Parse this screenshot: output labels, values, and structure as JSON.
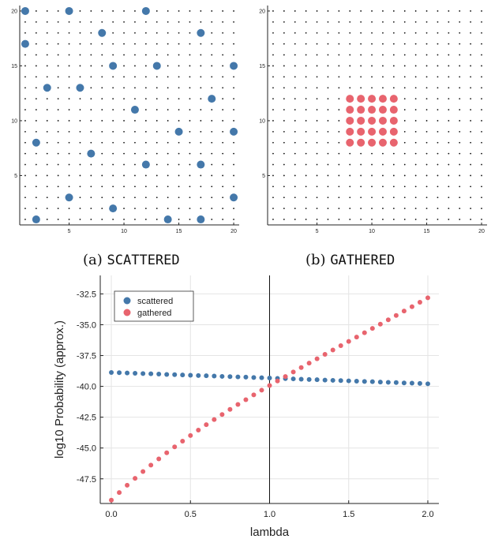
{
  "captions": {
    "a_label": "(a)",
    "a_name": "SCATTERED",
    "b_label": "(b)",
    "b_name": "GATHERED"
  },
  "colors": {
    "scattered": "#4478aa",
    "gathered": "#e8646e",
    "grid_dot": "#111111",
    "axis": "#222222"
  },
  "chart_data": [
    {
      "id": "a",
      "type": "scatter",
      "title": "",
      "xlabel": "",
      "ylabel": "",
      "xlim": [
        0.5,
        20.5
      ],
      "ylim": [
        0.5,
        20.5
      ],
      "xticks": [
        5,
        10,
        15,
        20
      ],
      "yticks": [
        5,
        10,
        15,
        20
      ],
      "background_grid": "dot at every integer lattice point",
      "points": [
        [
          1,
          20
        ],
        [
          5,
          20
        ],
        [
          12,
          20
        ],
        [
          8,
          18
        ],
        [
          17,
          18
        ],
        [
          1,
          17
        ],
        [
          9,
          15
        ],
        [
          13,
          15
        ],
        [
          20,
          15
        ],
        [
          3,
          13
        ],
        [
          6,
          13
        ],
        [
          18,
          12
        ],
        [
          11,
          11
        ],
        [
          15,
          9
        ],
        [
          20,
          9
        ],
        [
          2,
          8
        ],
        [
          7,
          7
        ],
        [
          12,
          6
        ],
        [
          17,
          6
        ],
        [
          5,
          3
        ],
        [
          20,
          3
        ],
        [
          9,
          2
        ],
        [
          2,
          1
        ],
        [
          14,
          1
        ],
        [
          17,
          1
        ]
      ]
    },
    {
      "id": "b",
      "type": "scatter",
      "title": "",
      "xlabel": "",
      "ylabel": "",
      "xlim": [
        0.5,
        20.5
      ],
      "ylim": [
        0.5,
        20.5
      ],
      "xticks": [
        5,
        10,
        15,
        20
      ],
      "yticks": [
        5,
        10,
        15,
        20
      ],
      "background_grid": "dot at every integer lattice point",
      "points_block": {
        "x": [
          8,
          12
        ],
        "y": [
          8,
          12
        ]
      }
    },
    {
      "id": "c",
      "type": "scatter",
      "title": "",
      "xlabel": "lambda",
      "ylabel": "log10 Probability (approx.)",
      "xlim": [
        -0.07,
        2.07
      ],
      "ylim": [
        -49.5,
        -31.0
      ],
      "xticks": [
        0.0,
        0.5,
        1.0,
        1.5,
        2.0
      ],
      "xtick_labels": [
        "0.0",
        "0.5",
        "1.0",
        "1.5",
        "2.0"
      ],
      "yticks": [
        -47.5,
        -45.0,
        -42.5,
        -40.0,
        -37.5,
        -35.0,
        -32.5
      ],
      "ytick_labels": [
        "-47.5",
        "-45.0",
        "-42.5",
        "-40.0",
        "-37.5",
        "-35.0",
        "-32.5"
      ],
      "grid": true,
      "legend": "top-left",
      "vline": 1.0,
      "x": [
        0.0,
        0.05,
        0.1,
        0.15,
        0.2,
        0.25,
        0.3,
        0.35,
        0.4,
        0.45,
        0.5,
        0.55,
        0.6,
        0.65,
        0.7,
        0.75,
        0.8,
        0.85,
        0.9,
        0.95,
        1.0,
        1.05,
        1.1,
        1.15,
        1.2,
        1.25,
        1.3,
        1.35,
        1.4,
        1.45,
        1.5,
        1.55,
        1.6,
        1.65,
        1.7,
        1.75,
        1.8,
        1.85,
        1.9,
        1.95,
        2.0
      ],
      "series": [
        {
          "name": "scattered",
          "values": [
            -38.87,
            -38.89,
            -38.91,
            -38.94,
            -38.96,
            -38.98,
            -39.0,
            -39.03,
            -39.05,
            -39.07,
            -39.1,
            -39.12,
            -39.14,
            -39.16,
            -39.19,
            -39.21,
            -39.23,
            -39.25,
            -39.28,
            -39.3,
            -39.32,
            -39.35,
            -39.37,
            -39.39,
            -39.42,
            -39.44,
            -39.46,
            -39.49,
            -39.51,
            -39.53,
            -39.55,
            -39.58,
            -39.6,
            -39.62,
            -39.65,
            -39.67,
            -39.69,
            -39.72,
            -39.74,
            -39.76,
            -39.79
          ]
        },
        {
          "name": "gathered",
          "values": [
            -49.23,
            -48.61,
            -48.02,
            -47.46,
            -46.91,
            -46.39,
            -45.88,
            -45.39,
            -44.91,
            -44.44,
            -43.99,
            -43.55,
            -43.11,
            -42.69,
            -42.28,
            -41.87,
            -41.47,
            -41.08,
            -40.69,
            -40.31,
            -39.93,
            -39.56,
            -39.2,
            -38.83,
            -38.47,
            -38.11,
            -37.76,
            -37.4,
            -37.05,
            -36.7,
            -36.35,
            -36.0,
            -35.65,
            -35.3,
            -34.95,
            -34.6,
            -34.25,
            -33.89,
            -33.54,
            -33.18,
            -32.82
          ]
        }
      ]
    }
  ]
}
